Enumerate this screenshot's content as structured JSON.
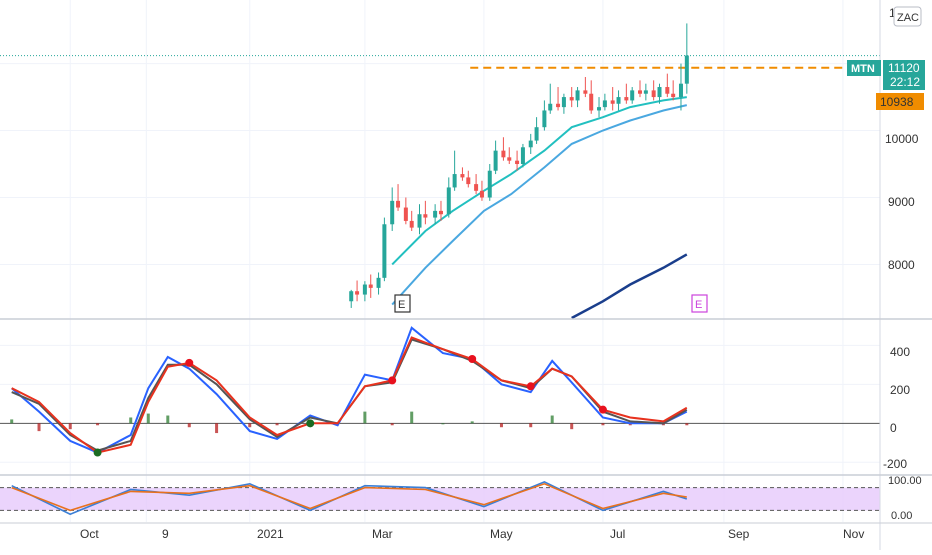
{
  "colors": {
    "bull": "#26a69a",
    "bear": "#ef5350",
    "ema_fast": "#22c0c0",
    "ema_slow": "#4aa8e0",
    "sma_long": "#1a3e8c",
    "dash": "#f08c00",
    "macd_blue": "#2962ff",
    "macd_gray": "#555555",
    "macd_red": "#e8321e",
    "dot_green": "#1b6b22",
    "dot_red": "#e8111e",
    "stoch_band": "#e6c9fb",
    "stoch_blue": "#3b7fd6",
    "stoch_orange": "#e8711e",
    "grid": "#f0f3fa",
    "axis_text": "#333333",
    "earnings": "#cc44dd"
  },
  "ticker_badge": "ZAC",
  "price_axis": {
    "ticks": [
      "8000",
      "9000",
      "10000",
      "1"
    ]
  },
  "tags": {
    "symbol": "MTN",
    "last_price": "11120",
    "countdown": "22:12",
    "level": "10938"
  },
  "earnings_markers": [
    "E",
    "E"
  ],
  "macd_axis": {
    "ticks": [
      "400",
      "200",
      "0",
      "-200"
    ]
  },
  "stoch_axis": {
    "ticks": [
      "100.00",
      "0.00"
    ]
  },
  "time_axis": {
    "labels": [
      "Oct",
      "9",
      "2021",
      "Mar",
      "May",
      "Jul",
      "Sep",
      "Nov"
    ]
  },
  "chart_data": [
    {
      "type": "candlestick",
      "x": [
        "2021-02-22",
        "2021-02-25",
        "2021-03-01",
        "2021-03-04",
        "2021-03-08",
        "2021-03-11",
        "2021-03-15",
        "2021-03-18",
        "2021-03-22",
        "2021-03-25",
        "2021-03-29",
        "2021-04-01",
        "2021-04-06",
        "2021-04-09",
        "2021-04-13",
        "2021-04-16",
        "2021-04-20",
        "2021-04-23",
        "2021-04-27",
        "2021-04-30",
        "2021-05-04",
        "2021-05-07",
        "2021-05-11",
        "2021-05-14",
        "2021-05-18",
        "2021-05-21",
        "2021-05-25",
        "2021-05-28",
        "2021-06-01",
        "2021-06-04",
        "2021-06-08",
        "2021-06-11",
        "2021-06-15",
        "2021-06-18",
        "2021-06-22",
        "2021-06-25",
        "2021-06-29",
        "2021-07-02",
        "2021-07-06",
        "2021-07-09",
        "2021-07-13",
        "2021-07-16",
        "2021-07-20",
        "2021-07-23",
        "2021-07-27",
        "2021-07-30",
        "2021-08-03",
        "2021-08-06",
        "2021-08-10",
        "2021-08-13"
      ],
      "open": [
        7450,
        7600,
        7550,
        7700,
        7650,
        7800,
        8600,
        8950,
        8850,
        8650,
        8550,
        8750,
        8700,
        8800,
        8750,
        9150,
        9350,
        9300,
        9200,
        9100,
        9000,
        9400,
        9700,
        9600,
        9550,
        9500,
        9750,
        9850,
        10050,
        10300,
        10400,
        10350,
        10500,
        10450,
        10600,
        10550,
        10300,
        10350,
        10450,
        10400,
        10500,
        10450,
        10600,
        10550,
        10600,
        10500,
        10650,
        10550,
        10500,
        10700
      ],
      "high": [
        7620,
        7760,
        7750,
        7850,
        7880,
        8700,
        9150,
        9200,
        9000,
        8800,
        8900,
        8950,
        8900,
        8950,
        9300,
        9700,
        9450,
        9400,
        9350,
        9250,
        9500,
        9850,
        9900,
        9750,
        9700,
        9800,
        9950,
        10200,
        10450,
        10700,
        10650,
        10550,
        10650,
        10650,
        10800,
        10750,
        10500,
        10550,
        10650,
        10600,
        10700,
        10650,
        10750,
        10700,
        10750,
        10700,
        10850,
        10750,
        11000,
        11600
      ],
      "low": [
        7350,
        7450,
        7450,
        7500,
        7550,
        7750,
        8500,
        8800,
        8600,
        8500,
        8450,
        8600,
        8600,
        8650,
        8700,
        9100,
        9250,
        9150,
        9050,
        8950,
        8950,
        9350,
        9550,
        9500,
        9400,
        9450,
        9650,
        9800,
        10000,
        10250,
        10300,
        10250,
        10350,
        10350,
        10500,
        10250,
        10200,
        10300,
        10300,
        10300,
        10400,
        10400,
        10500,
        10450,
        10450,
        10400,
        10500,
        10450,
        10300,
        10550
      ],
      "close": [
        7600,
        7550,
        7700,
        7650,
        7800,
        8600,
        8950,
        8850,
        8650,
        8550,
        8750,
        8700,
        8800,
        8750,
        9150,
        9350,
        9300,
        9200,
        9100,
        9000,
        9400,
        9700,
        9600,
        9550,
        9500,
        9750,
        9850,
        10050,
        10300,
        10400,
        10350,
        10500,
        10450,
        10600,
        10550,
        10300,
        10350,
        10450,
        10400,
        10500,
        10450,
        10600,
        10550,
        10600,
        10500,
        10650,
        10550,
        10500,
        10700,
        11120
      ]
    },
    {
      "type": "line",
      "x": [
        "2021-03-15",
        "2021-04-01",
        "2021-04-15",
        "2021-05-01",
        "2021-05-15",
        "2021-06-01",
        "2021-06-15",
        "2021-07-01",
        "2021-07-15",
        "2021-08-01",
        "2021-08-13"
      ],
      "series": [
        {
          "values": [
            8000,
            8500,
            8800,
            9100,
            9350,
            9700,
            10050,
            10200,
            10350,
            10450,
            10500
          ]
        },
        {
          "values": [
            7400,
            7950,
            8350,
            8800,
            9050,
            9450,
            9800,
            10000,
            10150,
            10300,
            10380
          ]
        },
        {
          "values": [
            null,
            null,
            null,
            null,
            null,
            null,
            7200,
            7450,
            7700,
            7950,
            8150
          ]
        }
      ],
      "reference_lines": [
        {
          "y": 10938,
          "from": "2021-04-24"
        }
      ],
      "ylim": [
        7200,
        11950
      ]
    },
    {
      "type": "line",
      "x": [
        "2020-09-01",
        "2020-09-15",
        "2020-10-01",
        "2020-10-15",
        "2020-11-01",
        "2020-11-10",
        "2020-11-20",
        "2020-12-01",
        "2020-12-15",
        "2021-01-01",
        "2021-01-15",
        "2021-02-01",
        "2021-02-15",
        "2021-03-01",
        "2021-03-15",
        "2021-03-25",
        "2021-04-10",
        "2021-04-25",
        "2021-05-10",
        "2021-05-25",
        "2021-06-05",
        "2021-06-15",
        "2021-07-01",
        "2021-07-15",
        "2021-08-01",
        "2021-08-13"
      ],
      "series": [
        {
          "values": [
            180,
            60,
            -90,
            -150,
            -60,
            180,
            340,
            280,
            150,
            -40,
            -80,
            40,
            -10,
            250,
            220,
            490,
            360,
            330,
            200,
            160,
            320,
            210,
            30,
            0,
            0,
            60
          ]
        },
        {
          "values": [
            160,
            100,
            -60,
            -140,
            -90,
            130,
            300,
            300,
            200,
            20,
            -70,
            30,
            0,
            190,
            210,
            430,
            380,
            320,
            220,
            180,
            280,
            240,
            60,
            10,
            0,
            70
          ]
        },
        {
          "values": [
            180,
            110,
            -50,
            -150,
            -110,
            110,
            290,
            310,
            220,
            30,
            -60,
            0,
            0,
            190,
            220,
            440,
            380,
            330,
            220,
            190,
            280,
            240,
            70,
            30,
            10,
            80
          ]
        }
      ],
      "histogram": [
        20,
        -40,
        -30,
        -10,
        30,
        50,
        40,
        -20,
        -50,
        -20,
        -10,
        10,
        -10,
        60,
        -10,
        60,
        0,
        10,
        -20,
        -20,
        40,
        -30,
        -10,
        -10,
        -10,
        -10
      ],
      "ylim": [
        -260,
        530
      ]
    },
    {
      "type": "line",
      "x": [
        "2020-09-01",
        "2020-10-01",
        "2020-11-01",
        "2020-12-01",
        "2021-01-01",
        "2021-02-01",
        "2021-03-01",
        "2021-04-01",
        "2021-05-01",
        "2021-06-01",
        "2021-07-01",
        "2021-08-01",
        "2021-08-13"
      ],
      "series": [
        {
          "values": [
            85,
            10,
            75,
            60,
            90,
            20,
            85,
            80,
            30,
            95,
            20,
            70,
            50
          ]
        },
        {
          "values": [
            80,
            20,
            70,
            65,
            85,
            25,
            80,
            75,
            35,
            90,
            25,
            65,
            55
          ]
        }
      ],
      "reference_lines": [
        {
          "y": 80
        },
        {
          "y": 20
        }
      ],
      "ylim": [
        0,
        100
      ]
    }
  ]
}
